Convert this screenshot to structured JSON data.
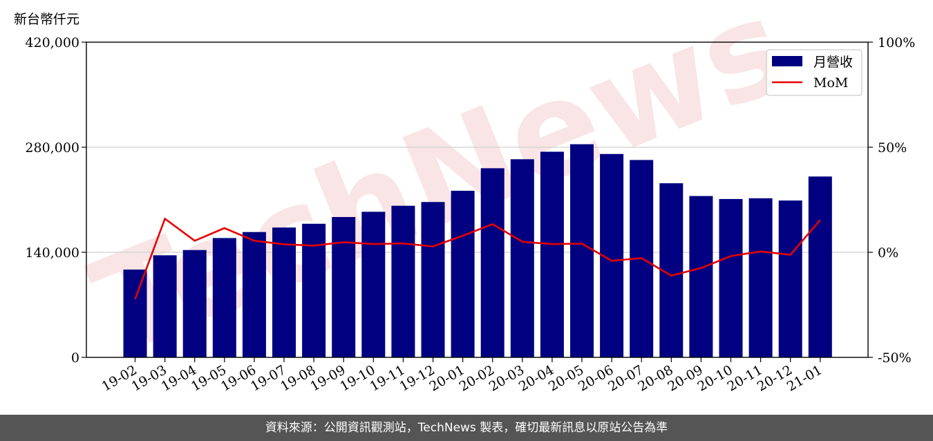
{
  "footer": {
    "source_text": "資料來源：公開資訊觀測站，TechNews 製表，確切最新訊息以原站公告為準"
  },
  "watermark": {
    "text": "TechNews"
  },
  "chart_data": {
    "type": "bar",
    "y_unit_label": "新台幣仟元",
    "categories": [
      "19-02",
      "19-03",
      "19-04",
      "19-05",
      "19-06",
      "19-07",
      "19-08",
      "19-09",
      "19-10",
      "19-11",
      "19-12",
      "20-01",
      "20-02",
      "20-03",
      "20-04",
      "20-05",
      "20-06",
      "20-07",
      "20-08",
      "20-09",
      "20-10",
      "20-11",
      "20-12",
      "21-01"
    ],
    "series": [
      {
        "name": "月營收",
        "type": "bar",
        "axis": "left",
        "color": "#000080",
        "values": [
          117000,
          136000,
          143000,
          159000,
          167000,
          173000,
          178000,
          187000,
          194000,
          202000,
          207000,
          222000,
          252000,
          264000,
          274000,
          284000,
          271000,
          263000,
          232000,
          215000,
          211000,
          212000,
          209000,
          241000
        ]
      },
      {
        "name": "MoM",
        "type": "line",
        "axis": "right",
        "color": "#e60000",
        "values": [
          -22.3,
          16.0,
          5.5,
          11.5,
          5.5,
          3.8,
          3.2,
          4.8,
          3.9,
          4.2,
          2.8,
          7.9,
          13.4,
          5.0,
          3.9,
          4.1,
          -4.0,
          -2.8,
          -11.1,
          -7.5,
          -1.8,
          0.4,
          -1.2,
          15.4
        ]
      }
    ],
    "y_left": {
      "min": 0,
      "max": 420000,
      "ticks": [
        "0",
        "140,000",
        "280,000",
        "420,000"
      ],
      "tick_values": [
        0,
        140000,
        280000,
        420000
      ]
    },
    "y_right": {
      "min": -50,
      "max": 100,
      "ticks": [
        "-50%",
        "0%",
        "50%",
        "100%"
      ],
      "tick_values": [
        -50,
        0,
        50,
        100
      ]
    },
    "grid": "horizontal",
    "legend_position": "top-right"
  }
}
